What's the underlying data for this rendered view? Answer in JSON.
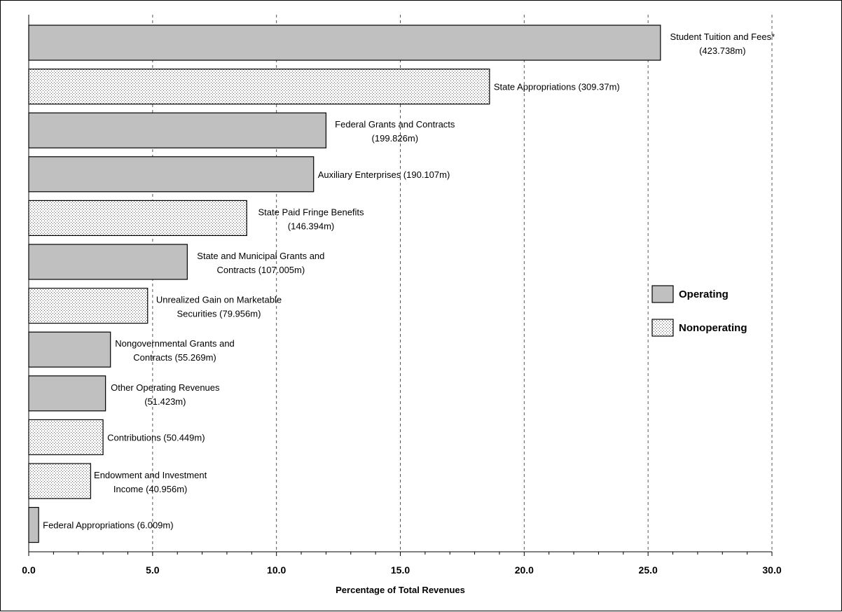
{
  "chart_data": {
    "type": "bar",
    "orientation": "horizontal",
    "xlabel": "Percentage of Total Revenues",
    "xlim": [
      0,
      30
    ],
    "x_ticks": [
      "0.0",
      "5.0",
      "10.0",
      "15.0",
      "20.0",
      "25.0",
      "30.0"
    ],
    "grid": "vertical dashed lines at major ticks",
    "legend_position": "right",
    "legend": [
      {
        "name": "Operating",
        "fill": "#c0c0c0",
        "pattern": "solid"
      },
      {
        "name": "Nonoperating",
        "fill": "#ffffff",
        "pattern": "dotted"
      }
    ],
    "bars": [
      {
        "label": [
          "Student Tuition and Fees*",
          "(423.738m)"
        ],
        "value": 25.5,
        "group": "Operating"
      },
      {
        "label": [
          "State Appropriations (309.37m)"
        ],
        "value": 18.6,
        "group": "Nonoperating"
      },
      {
        "label": [
          "Federal Grants and Contracts",
          "(199.826m)"
        ],
        "value": 12.0,
        "group": "Operating"
      },
      {
        "label": [
          "Auxiliary Enterprises (190.107m)"
        ],
        "value": 11.5,
        "group": "Operating"
      },
      {
        "label": [
          "State Paid Fringe Benefits",
          "(146.394m)"
        ],
        "value": 8.8,
        "group": "Nonoperating"
      },
      {
        "label": [
          "State and Municipal Grants and",
          "Contracts (107.005m)"
        ],
        "value": 6.4,
        "group": "Operating"
      },
      {
        "label": [
          "Unrealized Gain on Marketable",
          "Securities (79.956m)"
        ],
        "value": 4.8,
        "group": "Nonoperating"
      },
      {
        "label": [
          "Nongovernmental Grants and",
          "Contracts (55.269m)"
        ],
        "value": 3.3,
        "group": "Operating"
      },
      {
        "label": [
          "Other Operating Revenues",
          "(51.423m)"
        ],
        "value": 3.1,
        "group": "Operating"
      },
      {
        "label": [
          "Contributions (50.449m)"
        ],
        "value": 3.0,
        "group": "Nonoperating"
      },
      {
        "label": [
          "Endowment and Investment",
          "Income (40.956m)"
        ],
        "value": 2.5,
        "group": "Nonoperating"
      },
      {
        "label": [
          "Federal Appropriations (6.009m)"
        ],
        "value": 0.4,
        "group": "Operating"
      }
    ]
  }
}
